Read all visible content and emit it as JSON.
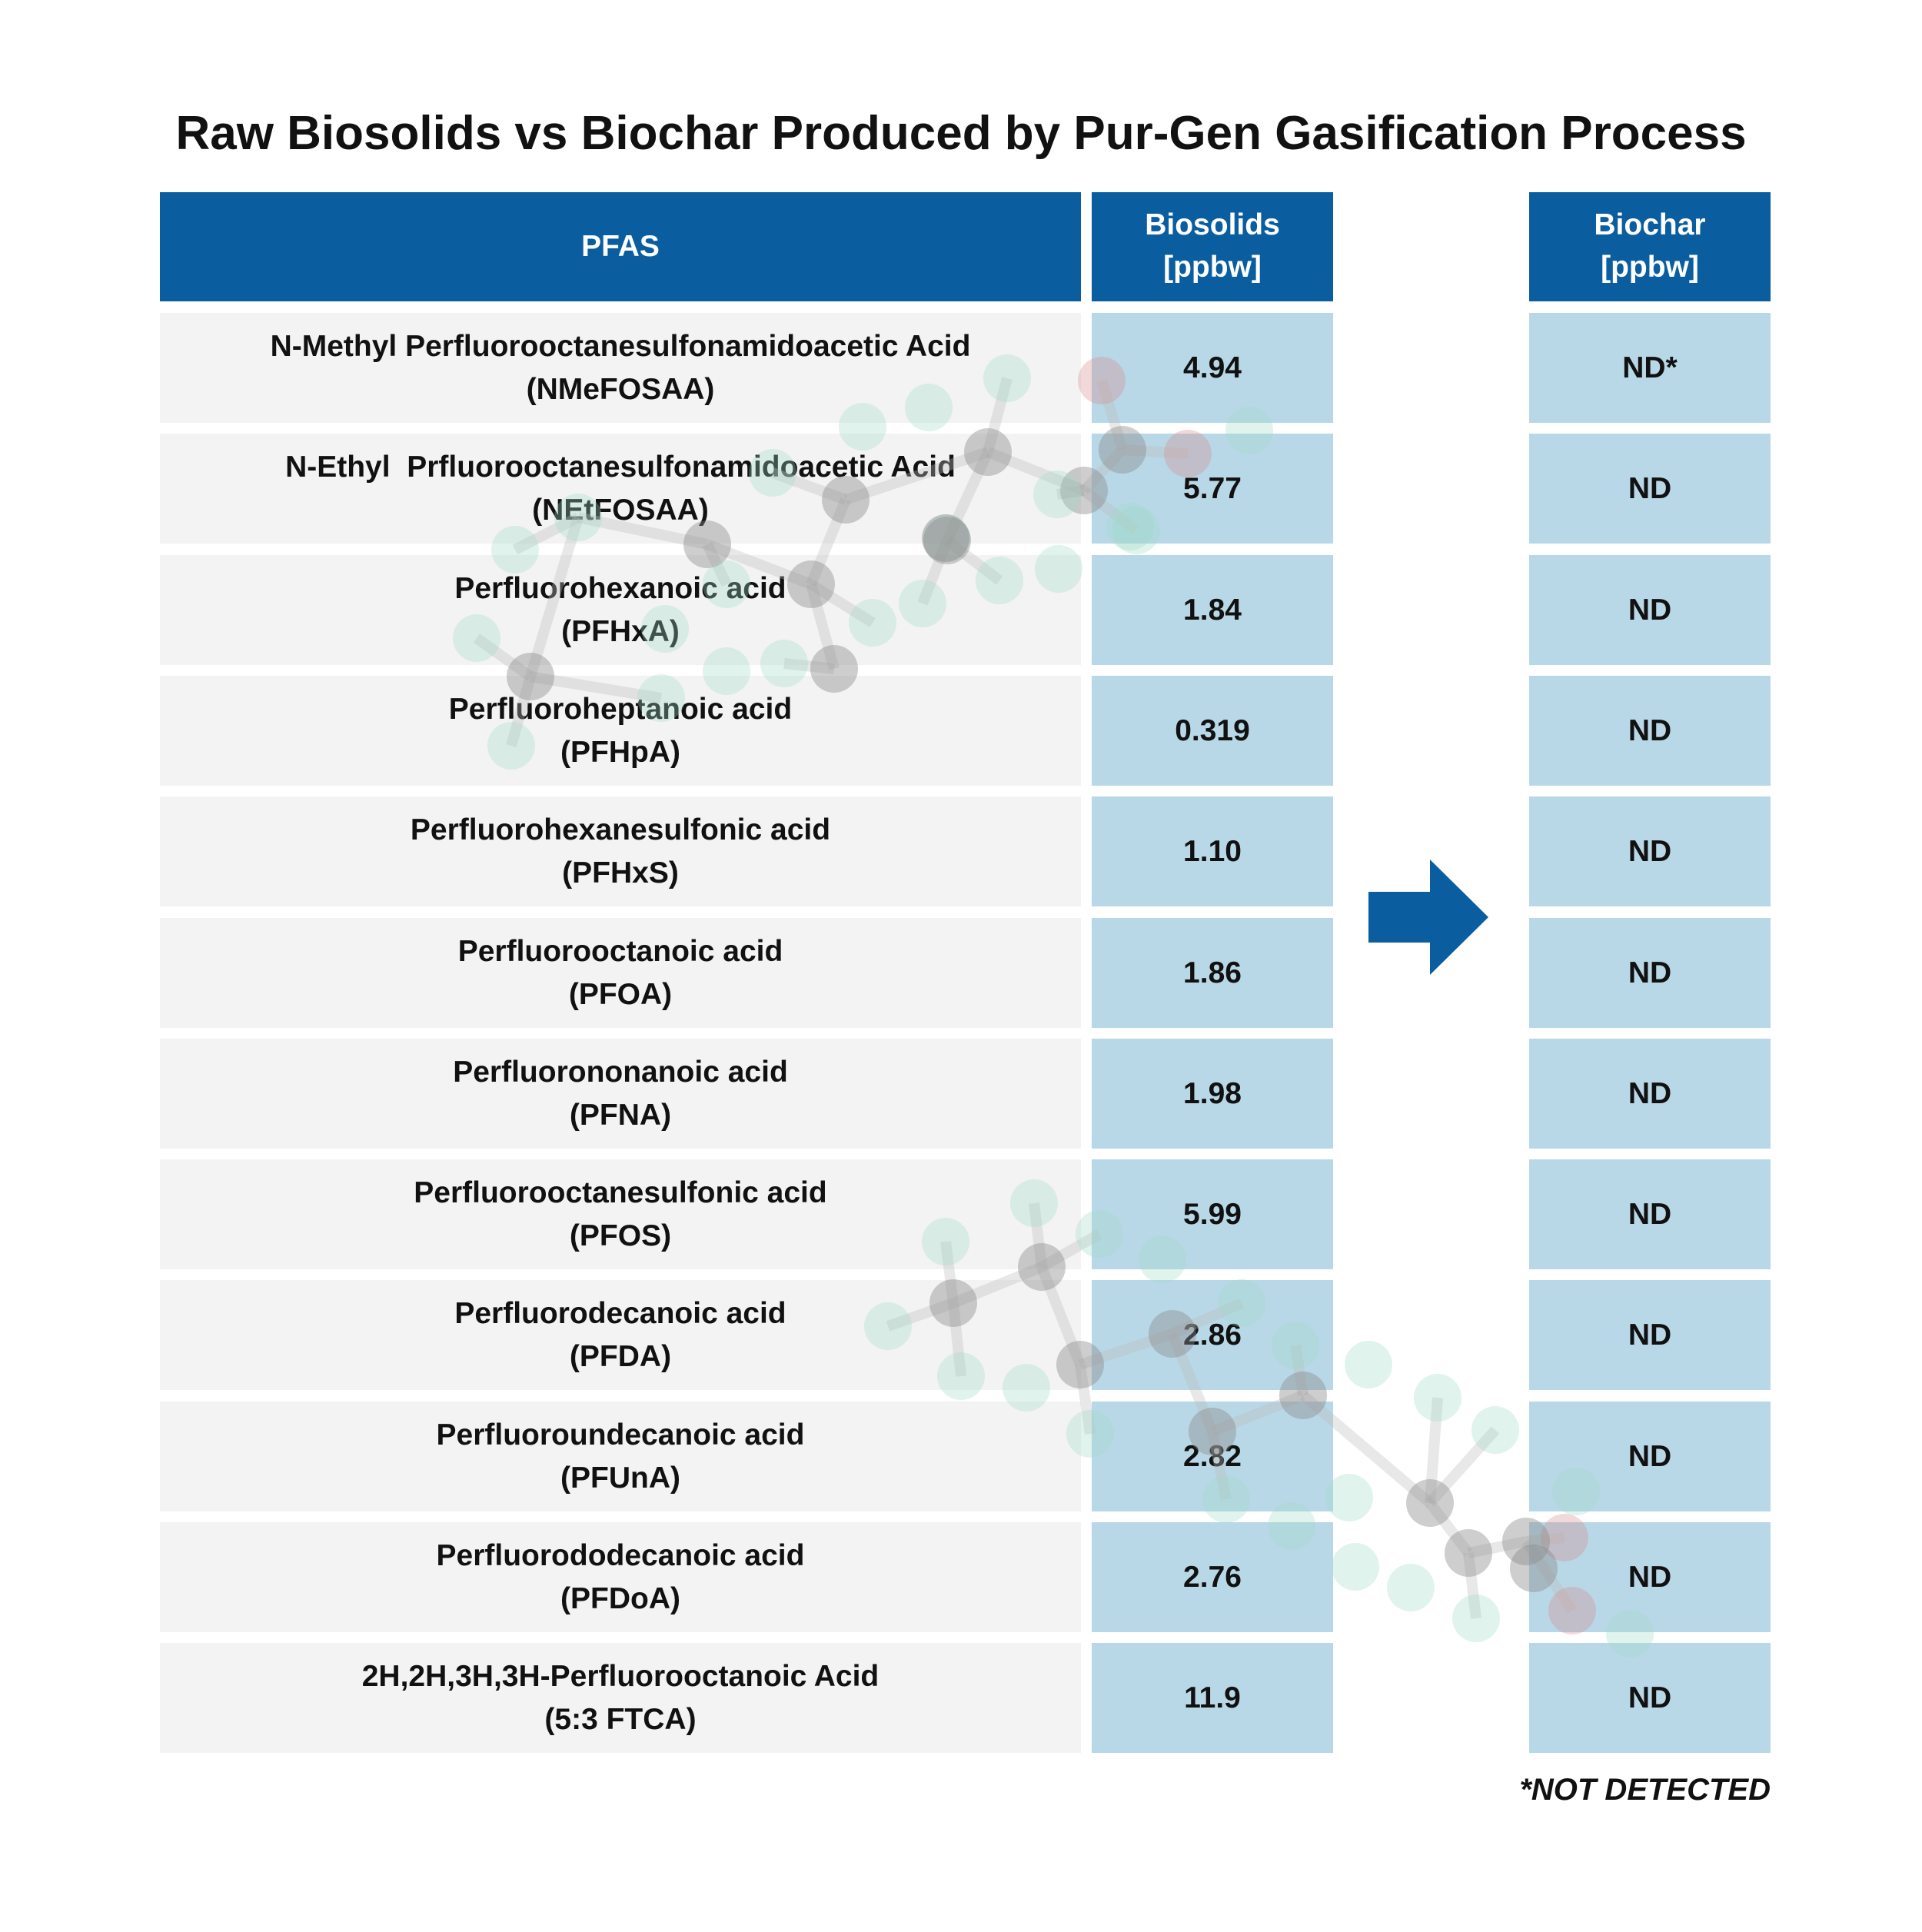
{
  "chart_data": {
    "type": "table",
    "title": "Raw Biosolids vs Biochar Produced by Pur-Gen Gasification Process",
    "columns": {
      "pfas": "PFAS",
      "biosolids_line1": "Biosolids",
      "biosolids_line2": "[ppbw]",
      "biochar_line1": "Biochar",
      "biochar_line2": "[ppbw]"
    },
    "rows": [
      {
        "name": "N-Methyl Perfluorooctanesulfonamidoacetic Acid",
        "abbr": "(NMeFOSAA)",
        "biosolids": "4.94",
        "biochar": "ND*"
      },
      {
        "name": "N-Ethyl  Prfluorooctanesulfonamidoacetic Acid",
        "abbr": "(NEtFOSAA)",
        "biosolids": "5.77",
        "biochar": "ND"
      },
      {
        "name": "Perfluorohexanoic acid",
        "abbr": "(PFHxA)",
        "biosolids": "1.84",
        "biochar": "ND"
      },
      {
        "name": "Perfluoroheptanoic acid",
        "abbr": "(PFHpA)",
        "biosolids": "0.319",
        "biochar": "ND"
      },
      {
        "name": "Perfluorohexanesulfonic acid",
        "abbr": "(PFHxS)",
        "biosolids": "1.10",
        "biochar": "ND"
      },
      {
        "name": "Perfluorooctanoic acid",
        "abbr": "(PFOA)",
        "biosolids": "1.86",
        "biochar": "ND"
      },
      {
        "name": "Perfluorononanoic acid",
        "abbr": "(PFNA)",
        "biosolids": "1.98",
        "biochar": "ND"
      },
      {
        "name": "Perfluorooctanesulfonic acid",
        "abbr": "(PFOS)",
        "biosolids": "5.99",
        "biochar": "ND"
      },
      {
        "name": "Perfluorodecanoic acid",
        "abbr": "(PFDA)",
        "biosolids": "2.86",
        "biochar": "ND"
      },
      {
        "name": "Perfluoroundecanoic acid",
        "abbr": "(PFUnA)",
        "biosolids": "2.82",
        "biochar": "ND"
      },
      {
        "name": "Perfluorododecanoic acid",
        "abbr": "(PFDoA)",
        "biosolids": "2.76",
        "biochar": "ND"
      },
      {
        "name": "2H,2H,3H,3H-Perfluorooctanoic Acid",
        "abbr": "(5:3 FTCA)",
        "biosolids": "11.9",
        "biochar": "ND"
      }
    ],
    "footnote": "*NOT DETECTED"
  },
  "colors": {
    "header": "#0a5d9f",
    "value_cell": "#b9d8e7",
    "name_cell": "#f3f3f3",
    "arrow": "#0a5d9f"
  },
  "icons": {
    "arrow": "right-arrow-icon",
    "decoration": "molecule-watermark"
  }
}
